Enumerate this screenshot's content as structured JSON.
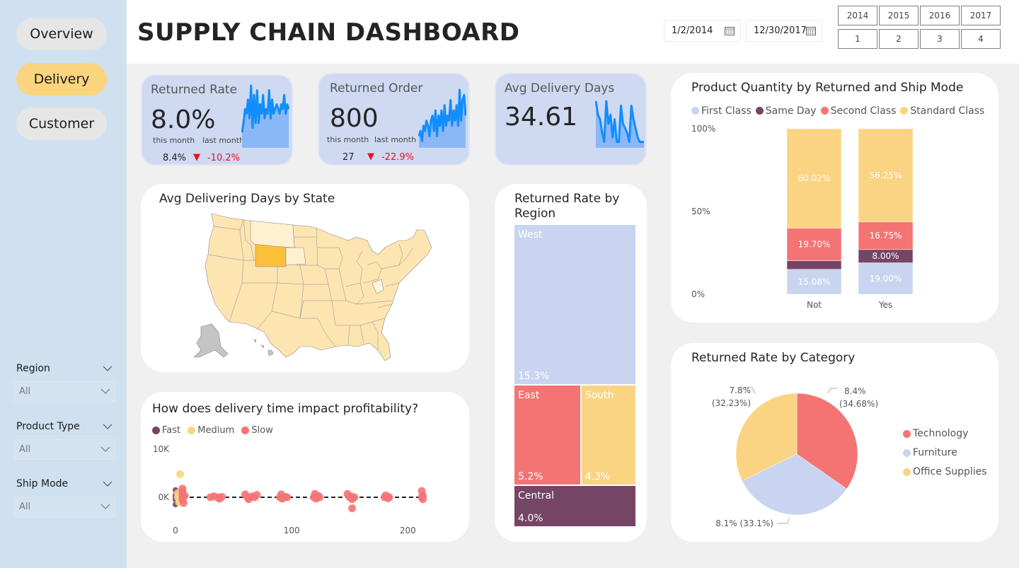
{
  "sidebar": {
    "nav": [
      {
        "label": "Overview",
        "active": false
      },
      {
        "label": "Delivery",
        "active": true
      },
      {
        "label": "Customer",
        "active": false
      }
    ],
    "slicers": [
      {
        "label": "Region",
        "value": "All"
      },
      {
        "label": "Product Type",
        "value": "All"
      },
      {
        "label": "Ship Mode",
        "value": "All"
      }
    ]
  },
  "header": {
    "title": "SUPPLY CHAIN DASHBOARD",
    "date_start": "1/2/2014",
    "date_end": "12/30/2017",
    "years": [
      "2014",
      "2015",
      "2016",
      "2017"
    ],
    "quarters": [
      "1",
      "2",
      "3",
      "4"
    ]
  },
  "kpis": [
    {
      "title": "Returned Rate",
      "value": "8.0%",
      "this_month_label": "this month",
      "last_month_label": "last month",
      "last_month_value": "8.4%",
      "delta": "-10.2%",
      "trend": "down"
    },
    {
      "title": "Returned Order",
      "value": "800",
      "this_month_label": "this month",
      "last_month_label": "last month",
      "last_month_value": "27",
      "delta": "-22.9%",
      "trend": "down"
    },
    {
      "title": "Avg Delivery Days",
      "value": "34.61"
    }
  ],
  "colors": {
    "first_class": "#c9d4f0",
    "same_day": "#744565",
    "second_class": "#f47474",
    "standard_class": "#fad482",
    "spark_line": "#118dff",
    "spark_fill": "#8ab8f6",
    "negative": "#e81123",
    "map_highlight": "#fdc03a",
    "map_base": "#fde5b2"
  },
  "map_card": {
    "title": "Avg Delivering Days by State",
    "highlighted_state": "Wyoming"
  },
  "region_card": {
    "title": "Returned Rate by Region"
  },
  "scatter_card": {
    "title": "How does delivery time impact profitability?"
  },
  "ship_mode_card": {
    "title": "Product Quantity by Returned and Ship Mode"
  },
  "category_card": {
    "title": "Returned Rate by Category"
  },
  "chart_data": [
    {
      "id": "returned_rate_by_region",
      "type": "treemap",
      "title": "Returned Rate by Region",
      "items": [
        {
          "label": "West",
          "value": 15.3,
          "display": "15.3%",
          "color": "#c9d4f0"
        },
        {
          "label": "East",
          "value": 5.2,
          "display": "5.2%",
          "color": "#f47474"
        },
        {
          "label": "South",
          "value": 4.3,
          "display": "4.3%",
          "color": "#fad482"
        },
        {
          "label": "Central",
          "value": 4.0,
          "display": "4.0%",
          "color": "#744565"
        }
      ]
    },
    {
      "id": "product_quantity_by_returned_ship_mode",
      "type": "bar",
      "stacked": "100%",
      "title": "Product Quantity by Returned and Ship Mode",
      "categories": [
        "Not",
        "Yes"
      ],
      "yticks": [
        "0%",
        "50%",
        "100%"
      ],
      "ylim": [
        0,
        100
      ],
      "legend": [
        "First Class",
        "Same Day",
        "Second Class",
        "Standard Class"
      ],
      "legend_position": "top-left",
      "series": [
        {
          "name": "First Class",
          "values": [
            15.08,
            19.0
          ],
          "labels": [
            "15.08%",
            "19.00%"
          ],
          "color": "#c9d4f0"
        },
        {
          "name": "Same Day",
          "values": [
            5.2,
            8.0
          ],
          "labels": [
            "",
            "8.00%"
          ],
          "color": "#744565"
        },
        {
          "name": "Second Class",
          "values": [
            19.7,
            16.75
          ],
          "labels": [
            "19.70%",
            "16.75%"
          ],
          "color": "#f47474"
        },
        {
          "name": "Standard Class",
          "values": [
            60.02,
            56.25
          ],
          "labels": [
            "60.02%",
            "56.25%"
          ],
          "color": "#fad482"
        }
      ]
    },
    {
      "id": "returned_rate_by_category",
      "type": "pie",
      "title": "Returned Rate by Category",
      "legend_position": "right",
      "slices": [
        {
          "label": "Technology",
          "value": 8.4,
          "share": 34.68,
          "display": "8.4%",
          "share_display": "(34.68%)",
          "color": "#f47474"
        },
        {
          "label": "Furniture",
          "value": 8.1,
          "share": 33.1,
          "display": "8.1%",
          "share_display": "(33.1%)",
          "color": "#c9d4f0"
        },
        {
          "label": "Office Supplies",
          "value": 7.8,
          "share": 32.23,
          "display": "7.8%",
          "share_display": "(32.23%)",
          "color": "#fad482"
        }
      ]
    },
    {
      "id": "delivery_time_vs_profit",
      "type": "scatter",
      "title": "How does delivery time impact profitability?",
      "xticks": [
        "0",
        "100",
        "200"
      ],
      "yticks": [
        "0K",
        "10K"
      ],
      "xlim": [
        0,
        220
      ],
      "ylim": [
        -3000,
        10000
      ],
      "reference_line_y": 0,
      "legend": [
        "Fast",
        "Medium",
        "Slow"
      ],
      "legend_position": "top-left",
      "series": [
        {
          "name": "Fast",
          "color": "#744565",
          "points": [
            [
              0,
              1500
            ],
            [
              0,
              -1500
            ],
            [
              0,
              500
            ],
            [
              0,
              -500
            ],
            [
              0,
              0
            ]
          ]
        },
        {
          "name": "Medium",
          "color": "#fad482",
          "points": [
            [
              4,
              4800
            ],
            [
              2,
              0
            ],
            [
              3,
              -1000
            ],
            [
              2,
              800
            ],
            [
              4,
              -400
            ]
          ]
        },
        {
          "name": "Slow",
          "color": "#f47474",
          "points": [
            [
              6,
              1800
            ],
            [
              6,
              600
            ],
            [
              6,
              0
            ],
            [
              6,
              -500
            ],
            [
              7,
              -1200
            ],
            [
              6,
              1200
            ],
            [
              8,
              300
            ],
            [
              30,
              0
            ],
            [
              33,
              200
            ],
            [
              36,
              0
            ],
            [
              38,
              -300
            ],
            [
              40,
              100
            ],
            [
              60,
              600
            ],
            [
              62,
              0
            ],
            [
              63,
              -400
            ],
            [
              66,
              200
            ],
            [
              68,
              0
            ],
            [
              70,
              500
            ],
            [
              90,
              0
            ],
            [
              91,
              600
            ],
            [
              92,
              -300
            ],
            [
              94,
              100
            ],
            [
              96,
              0
            ],
            [
              119,
              0
            ],
            [
              120,
              700
            ],
            [
              121,
              -300
            ],
            [
              123,
              300
            ],
            [
              124,
              0
            ],
            [
              148,
              700
            ],
            [
              150,
              0
            ],
            [
              151,
              200
            ],
            [
              152,
              -400
            ],
            [
              154,
              0
            ],
            [
              152,
              -2300
            ],
            [
              180,
              0
            ],
            [
              181,
              400
            ],
            [
              183,
              -200
            ],
            [
              184,
              0
            ],
            [
              212,
              0
            ],
            [
              212,
              1300
            ],
            [
              213,
              300
            ],
            [
              213,
              -400
            ]
          ]
        }
      ]
    },
    {
      "id": "kpi_sparklines",
      "type": "line",
      "series": [
        {
          "name": "Returned Rate",
          "values": [
            3,
            5,
            8,
            7,
            10,
            6,
            13,
            4,
            11,
            5,
            12,
            5,
            9,
            7,
            11,
            6,
            8,
            7,
            12,
            6,
            10,
            7,
            8,
            9,
            8,
            7,
            9,
            8,
            11,
            7,
            9,
            8
          ]
        },
        {
          "name": "Returned Order",
          "values": [
            2,
            3,
            1,
            4,
            3,
            5,
            4,
            2,
            5,
            6,
            3,
            7,
            2,
            6,
            4,
            7,
            3,
            8,
            4,
            6,
            5,
            9,
            4,
            7,
            5,
            8,
            4,
            11,
            5,
            9,
            10,
            6
          ]
        },
        {
          "name": "Avg Delivery Days",
          "values": [
            10,
            7,
            6,
            3,
            1,
            10,
            5,
            7,
            2,
            6,
            1,
            1,
            9,
            5,
            4,
            3,
            1,
            9,
            6,
            4,
            2,
            1,
            1,
            1
          ]
        }
      ]
    }
  ]
}
